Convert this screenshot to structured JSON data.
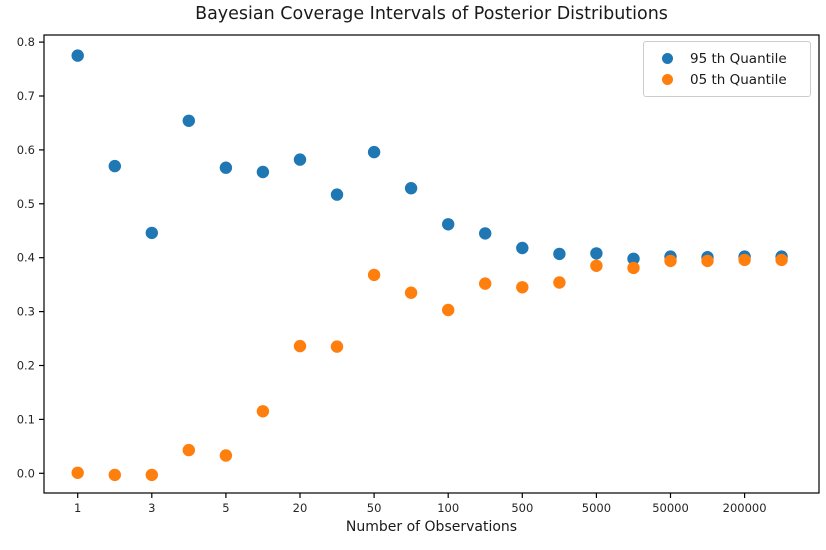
{
  "figure": {
    "title": "Bayesian Coverage Intervals of Posterior Distributions",
    "xlabel": "Number of Observations"
  },
  "chart_data": {
    "type": "scatter",
    "title": "Bayesian Coverage Intervals of Posterior Distributions",
    "xlabel": "Number of Observations",
    "ylabel": "",
    "grid": false,
    "legend_position": "upper right",
    "x_scale": "categorical (20 evenly spaced positions, every other position labeled)",
    "num_points_per_series": 20,
    "x_tick_positions": [
      0,
      2,
      4,
      6,
      8,
      10,
      12,
      14,
      16,
      18
    ],
    "x_tick_labels": [
      "1",
      "3",
      "5",
      "20",
      "50",
      "100",
      "500",
      "5000",
      "50000",
      "200000"
    ],
    "y_tick_labels": [
      "0.0",
      "0.1",
      "0.2",
      "0.3",
      "0.4",
      "0.5",
      "0.6",
      "0.7",
      "0.8"
    ],
    "y_ticks": [
      0.0,
      0.1,
      0.2,
      0.3,
      0.4,
      0.5,
      0.6,
      0.7,
      0.8
    ],
    "ylim": [
      -0.037,
      0.813
    ],
    "xlim_index": [
      -0.91,
      20.0
    ],
    "marker": "circle",
    "marker_diameter_px": 12.4,
    "series": [
      {
        "name": "95 th Quantile",
        "color": "#1f77b4",
        "x_index": [
          0,
          1,
          2,
          3,
          4,
          5,
          6,
          7,
          8,
          9,
          10,
          11,
          12,
          13,
          14,
          15,
          16,
          17,
          18,
          19
        ],
        "values": [
          0.775,
          0.57,
          0.446,
          0.654,
          0.567,
          0.559,
          0.582,
          0.517,
          0.596,
          0.529,
          0.462,
          0.445,
          0.418,
          0.407,
          0.408,
          0.398,
          0.402,
          0.401,
          0.402,
          0.402
        ]
      },
      {
        "name": "05 th Quantile",
        "color": "#ff7f0e",
        "x_index": [
          0,
          1,
          2,
          3,
          4,
          5,
          6,
          7,
          8,
          9,
          10,
          11,
          12,
          13,
          14,
          15,
          16,
          17,
          18,
          19
        ],
        "values": [
          0.001,
          -0.003,
          -0.003,
          0.043,
          0.033,
          0.115,
          0.236,
          0.235,
          0.368,
          0.335,
          0.303,
          0.352,
          0.345,
          0.354,
          0.385,
          0.381,
          0.394,
          0.394,
          0.396,
          0.396
        ]
      }
    ]
  }
}
